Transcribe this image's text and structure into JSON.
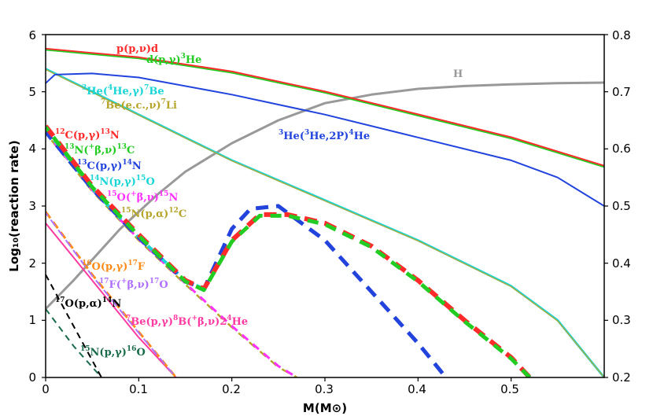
{
  "chart_data": {
    "type": "line",
    "xlabel": "M(M⊙)",
    "ylabel": "Log₁₀(reaction rate)",
    "xlim": [
      0,
      0.6
    ],
    "ylim": [
      0,
      6
    ],
    "y2lim": [
      0.2,
      0.8
    ],
    "x_ticks": [
      "0",
      "0.1",
      "0.2",
      "0.3",
      "0.4",
      "0.5"
    ],
    "y_ticks": [
      "0",
      "1",
      "2",
      "3",
      "4",
      "5",
      "6"
    ],
    "y2_ticks": [
      "0.2",
      "0.3",
      "0.4",
      "0.5",
      "0.6",
      "0.7",
      "0.8"
    ],
    "colors": {
      "pp": "#ff2a2a",
      "dpg": "#22cc22",
      "he3he4": "#19d5d5",
      "be7": "#b5a52a",
      "he3he3": "#2244dd",
      "c12": "#ff2a2a",
      "n13": "#22cc22",
      "c13": "#2244dd",
      "n14": "#19d5d5",
      "o15": "#ff33ff",
      "n15": "#b5a52a",
      "o16": "#ff8c1a",
      "f17": "#b070ff",
      "o17": "#000000",
      "be7p": "#ff3aa0",
      "n15b": "#1a6b4a",
      "H": "#999999"
    },
    "series": [
      {
        "name": "p(p,ν)d",
        "style": "solid",
        "x": [
          0,
          0.1,
          0.2,
          0.3,
          0.4,
          0.5,
          0.6
        ],
        "y": [
          5.75,
          5.6,
          5.35,
          5.0,
          4.6,
          4.2,
          3.7
        ]
      },
      {
        "name": "d(p,γ)³He",
        "style": "solid",
        "x": [
          0,
          0.1,
          0.2,
          0.3,
          0.4,
          0.5,
          0.6
        ],
        "y": [
          5.73,
          5.58,
          5.33,
          4.98,
          4.58,
          4.18,
          3.68
        ]
      },
      {
        "name": "³He(³He,2P)⁴He",
        "style": "solid",
        "x": [
          0,
          0.01,
          0.05,
          0.1,
          0.2,
          0.3,
          0.4,
          0.5,
          0.55,
          0.58,
          0.6
        ],
        "y": [
          5.15,
          5.3,
          5.32,
          5.25,
          4.95,
          4.6,
          4.2,
          3.8,
          3.5,
          3.2,
          3.0
        ]
      },
      {
        "name": "³He(⁴He,γ)⁷Be",
        "style": "solid",
        "x": [
          0,
          0.1,
          0.2,
          0.3,
          0.4,
          0.5,
          0.55,
          0.6
        ],
        "y": [
          5.4,
          4.6,
          3.8,
          3.1,
          2.4,
          1.6,
          1.0,
          0.0
        ]
      },
      {
        "name": "⁷Be(e.c.,ν)⁷Li",
        "style": "solid",
        "x": [
          0,
          0.1,
          0.2,
          0.3,
          0.4,
          0.5,
          0.55,
          0.6
        ],
        "y": [
          5.39,
          4.59,
          3.79,
          3.09,
          2.39,
          1.59,
          0.99,
          0.0
        ]
      },
      {
        "name": "¹²C(p,γ)¹³N",
        "style": "dashed",
        "x": [
          0,
          0.05,
          0.1,
          0.15,
          0.17,
          0.2,
          0.23,
          0.26,
          0.3,
          0.35,
          0.4,
          0.45,
          0.5,
          0.52
        ],
        "y": [
          4.4,
          3.35,
          2.5,
          1.7,
          1.55,
          2.4,
          2.85,
          2.85,
          2.7,
          2.3,
          1.7,
          1.0,
          0.35,
          0.0
        ]
      },
      {
        "name": "¹³N(⁺β,ν)¹³C",
        "style": "dashed",
        "x": [
          0,
          0.05,
          0.1,
          0.15,
          0.17,
          0.2,
          0.23,
          0.26,
          0.3,
          0.35,
          0.4,
          0.45,
          0.5,
          0.52
        ],
        "y": [
          4.38,
          3.33,
          2.48,
          1.68,
          1.53,
          2.38,
          2.83,
          2.83,
          2.68,
          2.28,
          1.68,
          0.98,
          0.33,
          0.0
        ]
      },
      {
        "name": "¹³C(p,γ)¹⁴N",
        "style": "dashed",
        "x": [
          0,
          0.05,
          0.1,
          0.15,
          0.17,
          0.2,
          0.22,
          0.25,
          0.3,
          0.35,
          0.4,
          0.43
        ],
        "y": [
          4.3,
          3.3,
          2.45,
          1.68,
          1.55,
          2.6,
          2.95,
          3.0,
          2.4,
          1.5,
          0.6,
          0.0
        ]
      },
      {
        "name": "¹⁴N(p,γ)¹⁵O",
        "style": "dashed",
        "x": [
          0,
          0.05,
          0.1,
          0.15,
          0.17
        ],
        "y": [
          4.35,
          3.3,
          2.45,
          1.7,
          1.55
        ]
      },
      {
        "name": "¹⁵O(⁺β,ν)¹⁵N",
        "style": "dashed",
        "x": [
          0,
          0.05,
          0.1,
          0.15,
          0.2,
          0.25,
          0.27
        ],
        "y": [
          4.3,
          3.28,
          2.42,
          1.65,
          0.9,
          0.2,
          0.0
        ]
      },
      {
        "name": "¹⁵N(p,α)¹²C",
        "style": "dashed",
        "x": [
          0,
          0.05,
          0.1,
          0.15,
          0.2,
          0.25,
          0.27
        ],
        "y": [
          4.28,
          3.26,
          2.4,
          1.63,
          0.88,
          0.18,
          0.0
        ]
      },
      {
        "name": "¹⁶O(p,γ)¹⁷F",
        "style": "dashed",
        "x": [
          0,
          0.05,
          0.1,
          0.14
        ],
        "y": [
          2.9,
          1.8,
          0.8,
          0.0
        ]
      },
      {
        "name": "¹⁷F(⁺β,ν)¹⁷O",
        "style": "dashed",
        "x": [
          0,
          0.05,
          0.1,
          0.14
        ],
        "y": [
          2.88,
          1.78,
          0.78,
          0.0
        ]
      },
      {
        "name": "¹⁷O(p,α)¹⁴N",
        "style": "dashed",
        "x": [
          0,
          0.03,
          0.06
        ],
        "y": [
          1.8,
          0.9,
          0.0
        ]
      },
      {
        "name": "⁷Be(p,γ)⁸B(⁺β,ν)2⁴He",
        "style": "solid",
        "x": [
          0,
          0.05,
          0.1,
          0.14
        ],
        "y": [
          2.7,
          1.7,
          0.7,
          0.0
        ]
      },
      {
        "name": "¹⁵N(p,γ)¹⁶O",
        "style": "dashed",
        "x": [
          0,
          0.03,
          0.06
        ],
        "y": [
          1.2,
          0.55,
          0.0
        ]
      },
      {
        "name": "H",
        "axis": "right",
        "style": "solid",
        "x": [
          0,
          0.03,
          0.08,
          0.12,
          0.15,
          0.2,
          0.25,
          0.3,
          0.35,
          0.4,
          0.45,
          0.5,
          0.55,
          0.6
        ],
        "y": [
          0.32,
          0.37,
          0.46,
          0.52,
          0.56,
          0.61,
          0.65,
          0.68,
          0.695,
          0.705,
          0.71,
          0.713,
          0.715,
          0.716
        ]
      }
    ],
    "labels": {
      "pp": {
        "a": "p(p,ν)d"
      },
      "dpg": {
        "a": "d(p,γ)",
        "b": "3",
        "c": "He"
      },
      "he3he4": {
        "a": "3",
        "b": "He(",
        "c": "4",
        "d": "He,γ)",
        "e": "7",
        "f": "Be"
      },
      "be7": {
        "a": "7",
        "b": "Be(e.c.,ν)",
        "c": "7",
        "d": "Li"
      },
      "he3he3": {
        "a": "3",
        "b": "He(",
        "c": "3",
        "d": "He,2P)",
        "e": "4",
        "f": "He"
      },
      "c12": {
        "a": "12",
        "b": "C(p,γ)",
        "c": "13",
        "d": "N"
      },
      "n13": {
        "a": "13",
        "b": "N(",
        "c": "+",
        "d": "β,ν)",
        "e": "13",
        "f": "C"
      },
      "c13": {
        "a": "13",
        "b": "C(p,γ)",
        "c": "14",
        "d": "N"
      },
      "n14": {
        "a": "14",
        "b": "N(p,γ)",
        "c": "15",
        "d": "O"
      },
      "o15": {
        "a": "15",
        "b": "O(",
        "c": "+",
        "d": "β,ν)",
        "e": "15",
        "f": "N"
      },
      "n15": {
        "a": "15",
        "b": "N(p,α)",
        "c": "12",
        "d": "C"
      },
      "o16": {
        "a": "16",
        "b": "O(p,γ)",
        "c": "17",
        "d": "F"
      },
      "f17": {
        "a": "17",
        "b": "F(",
        "c": "+",
        "d": "β,ν)",
        "e": "17",
        "f": "O"
      },
      "o17": {
        "a": "17",
        "b": "O(p,α)",
        "c": "14",
        "d": "N"
      },
      "be7p": {
        "a": "7",
        "b": "Be(p,γ)",
        "c": "8",
        "d": "B(",
        "e": "+",
        "f": "β,ν)2",
        "g": "4",
        "h": "He"
      },
      "n15b": {
        "a": "15",
        "b": "N(p,γ)",
        "c": "16",
        "d": "O"
      },
      "H": "H"
    }
  }
}
